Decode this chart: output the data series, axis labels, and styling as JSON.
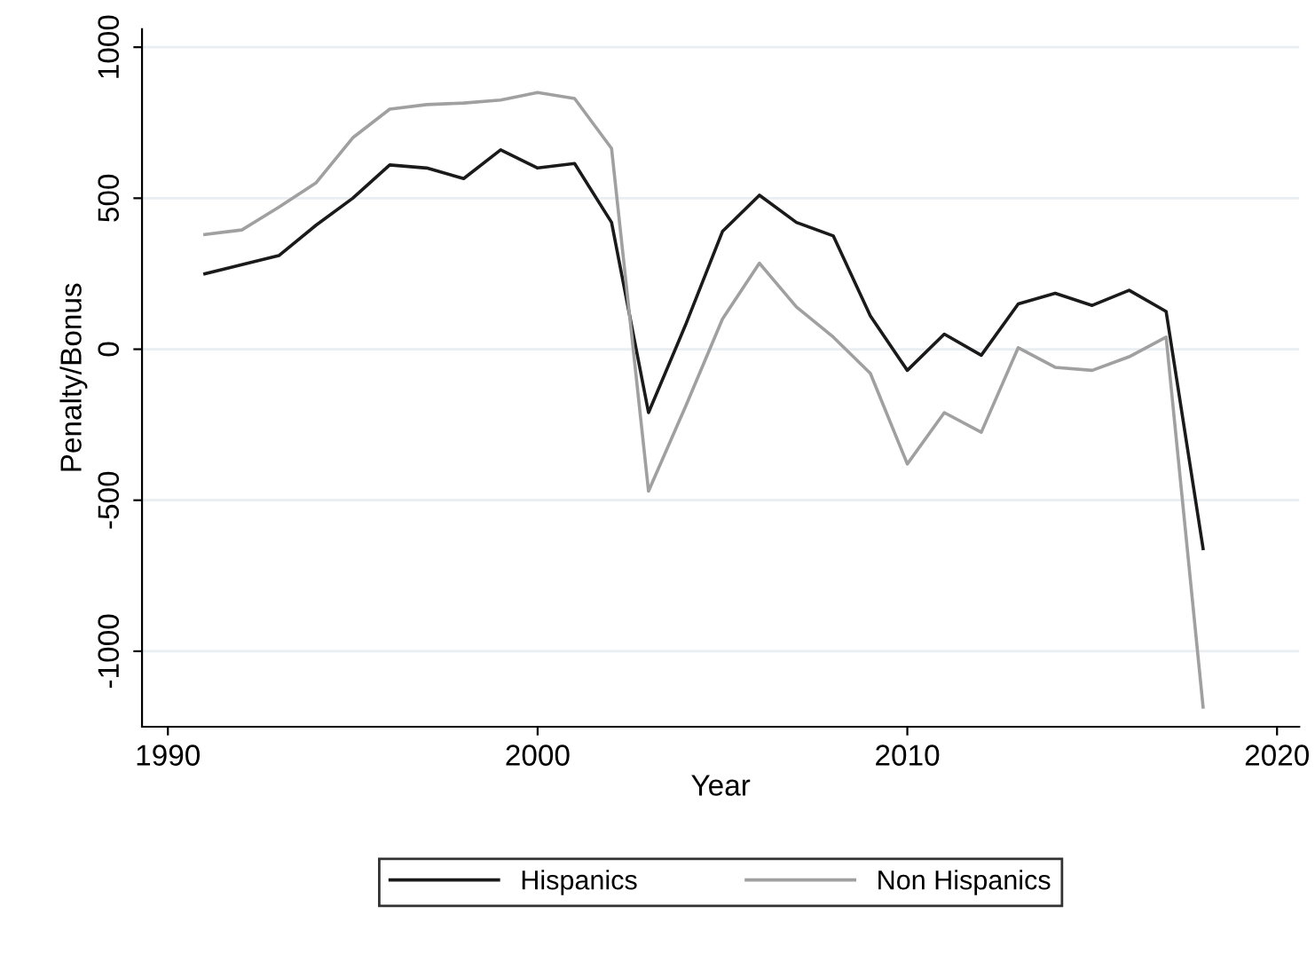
{
  "chart_data": {
    "type": "line",
    "xlabel": "Year",
    "ylabel": "Penalty/Bonus",
    "x": [
      1991,
      1992,
      1993,
      1994,
      1995,
      1996,
      1997,
      1998,
      1999,
      2000,
      2001,
      2002,
      2003,
      2004,
      2005,
      2006,
      2007,
      2008,
      2009,
      2010,
      2011,
      2012,
      2013,
      2014,
      2015,
      2016,
      2017,
      2018
    ],
    "series": [
      {
        "name": "Hispanics",
        "color": "#1a1a1a",
        "values": [
          250,
          280,
          310,
          410,
          500,
          610,
          600,
          565,
          660,
          600,
          615,
          420,
          -210,
          80,
          390,
          510,
          420,
          375,
          110,
          -70,
          50,
          -20,
          150,
          185,
          145,
          195,
          125,
          -660
        ]
      },
      {
        "name": "Non Hispanics",
        "color": "#a0a0a0",
        "values": [
          380,
          395,
          470,
          550,
          700,
          795,
          810,
          815,
          825,
          850,
          830,
          665,
          -470,
          -190,
          100,
          285,
          140,
          40,
          -80,
          -380,
          -210,
          -275,
          5,
          -60,
          -70,
          -25,
          40,
          -1185
        ]
      }
    ],
    "xlim": [
      1989.3,
      2020.6
    ],
    "xticks": [
      1990,
      2000,
      2010,
      2020
    ],
    "ylim": [
      -1250,
      1060
    ],
    "yticks": [
      -1000,
      -500,
      0,
      500,
      1000
    ],
    "grid": "y",
    "legend": "bottom",
    "marker": "none",
    "line_style": "solid"
  }
}
